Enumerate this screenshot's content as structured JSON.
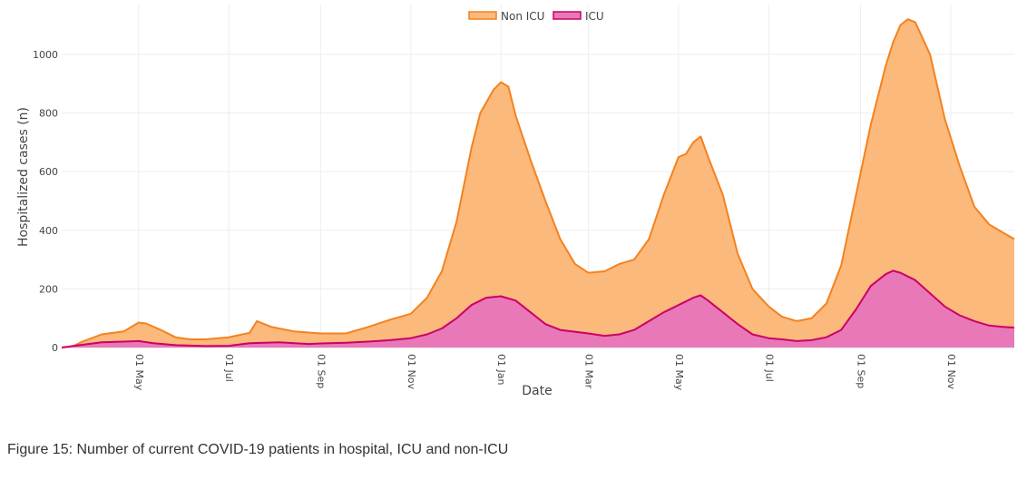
{
  "chart_data": {
    "type": "area",
    "title": "",
    "xlabel": "Date",
    "ylabel": "Hospitalized cases (n)",
    "ylim": [
      0,
      1170
    ],
    "y_ticks": [
      0,
      200,
      400,
      600,
      800,
      1000
    ],
    "x_tick_labels": [
      "01 May",
      "01 Jul",
      "01 Sep",
      "01 Nov",
      "01 Jan",
      "01 Mar",
      "01 May",
      "01 Jul",
      "01 Sep",
      "01 Nov"
    ],
    "x_tick_positions_days": [
      35,
      96,
      158,
      219,
      280,
      339,
      400,
      461,
      523,
      584
    ],
    "x_range_days": [
      -17,
      627
    ],
    "grid": true,
    "legend_position": "top-center",
    "series": [
      {
        "name": "Non ICU",
        "stacking": "total",
        "color": "#f4821f",
        "fill": "#fbb97c",
        "points": [
          [
            -17,
            0
          ],
          [
            -10,
            3
          ],
          [
            -3,
            20
          ],
          [
            10,
            45
          ],
          [
            25,
            55
          ],
          [
            35,
            85
          ],
          [
            40,
            82
          ],
          [
            50,
            60
          ],
          [
            60,
            35
          ],
          [
            70,
            28
          ],
          [
            80,
            28
          ],
          [
            96,
            35
          ],
          [
            110,
            50
          ],
          [
            115,
            90
          ],
          [
            125,
            70
          ],
          [
            140,
            55
          ],
          [
            158,
            48
          ],
          [
            175,
            48
          ],
          [
            190,
            70
          ],
          [
            205,
            95
          ],
          [
            219,
            115
          ],
          [
            230,
            170
          ],
          [
            240,
            260
          ],
          [
            250,
            430
          ],
          [
            260,
            680
          ],
          [
            266,
            800
          ],
          [
            275,
            880
          ],
          [
            280,
            905
          ],
          [
            285,
            890
          ],
          [
            290,
            790
          ],
          [
            300,
            640
          ],
          [
            310,
            500
          ],
          [
            320,
            370
          ],
          [
            330,
            285
          ],
          [
            339,
            255
          ],
          [
            350,
            260
          ],
          [
            360,
            285
          ],
          [
            370,
            300
          ],
          [
            380,
            370
          ],
          [
            390,
            520
          ],
          [
            400,
            650
          ],
          [
            405,
            660
          ],
          [
            410,
            700
          ],
          [
            415,
            720
          ],
          [
            420,
            650
          ],
          [
            430,
            520
          ],
          [
            440,
            320
          ],
          [
            450,
            200
          ],
          [
            461,
            140
          ],
          [
            470,
            105
          ],
          [
            480,
            90
          ],
          [
            490,
            100
          ],
          [
            500,
            150
          ],
          [
            510,
            280
          ],
          [
            520,
            520
          ],
          [
            530,
            760
          ],
          [
            540,
            960
          ],
          [
            545,
            1040
          ],
          [
            550,
            1100
          ],
          [
            555,
            1120
          ],
          [
            560,
            1110
          ],
          [
            570,
            1000
          ],
          [
            580,
            780
          ],
          [
            590,
            620
          ],
          [
            600,
            480
          ],
          [
            610,
            420
          ],
          [
            620,
            390
          ],
          [
            627,
            370
          ]
        ]
      },
      {
        "name": "ICU",
        "stacking": "stack",
        "color": "#cc0066",
        "fill": "#e878b8",
        "points": [
          [
            -17,
            0
          ],
          [
            -5,
            8
          ],
          [
            10,
            18
          ],
          [
            25,
            20
          ],
          [
            35,
            22
          ],
          [
            45,
            15
          ],
          [
            60,
            8
          ],
          [
            80,
            5
          ],
          [
            96,
            6
          ],
          [
            110,
            15
          ],
          [
            130,
            18
          ],
          [
            150,
            12
          ],
          [
            158,
            14
          ],
          [
            175,
            16
          ],
          [
            190,
            20
          ],
          [
            205,
            25
          ],
          [
            219,
            32
          ],
          [
            230,
            45
          ],
          [
            240,
            65
          ],
          [
            250,
            100
          ],
          [
            260,
            145
          ],
          [
            270,
            170
          ],
          [
            280,
            175
          ],
          [
            290,
            160
          ],
          [
            300,
            120
          ],
          [
            310,
            80
          ],
          [
            320,
            60
          ],
          [
            339,
            48
          ],
          [
            350,
            40
          ],
          [
            360,
            45
          ],
          [
            370,
            60
          ],
          [
            380,
            90
          ],
          [
            390,
            120
          ],
          [
            400,
            145
          ],
          [
            410,
            170
          ],
          [
            415,
            178
          ],
          [
            420,
            160
          ],
          [
            430,
            120
          ],
          [
            440,
            80
          ],
          [
            450,
            45
          ],
          [
            461,
            32
          ],
          [
            470,
            28
          ],
          [
            480,
            22
          ],
          [
            490,
            25
          ],
          [
            500,
            35
          ],
          [
            510,
            60
          ],
          [
            520,
            130
          ],
          [
            530,
            210
          ],
          [
            540,
            250
          ],
          [
            545,
            262
          ],
          [
            550,
            255
          ],
          [
            560,
            230
          ],
          [
            570,
            185
          ],
          [
            580,
            140
          ],
          [
            590,
            110
          ],
          [
            600,
            90
          ],
          [
            610,
            75
          ],
          [
            620,
            70
          ],
          [
            627,
            68
          ]
        ]
      }
    ]
  },
  "caption": "Figure 15: Number of current COVID-19 patients in hospital, ICU and non-ICU"
}
